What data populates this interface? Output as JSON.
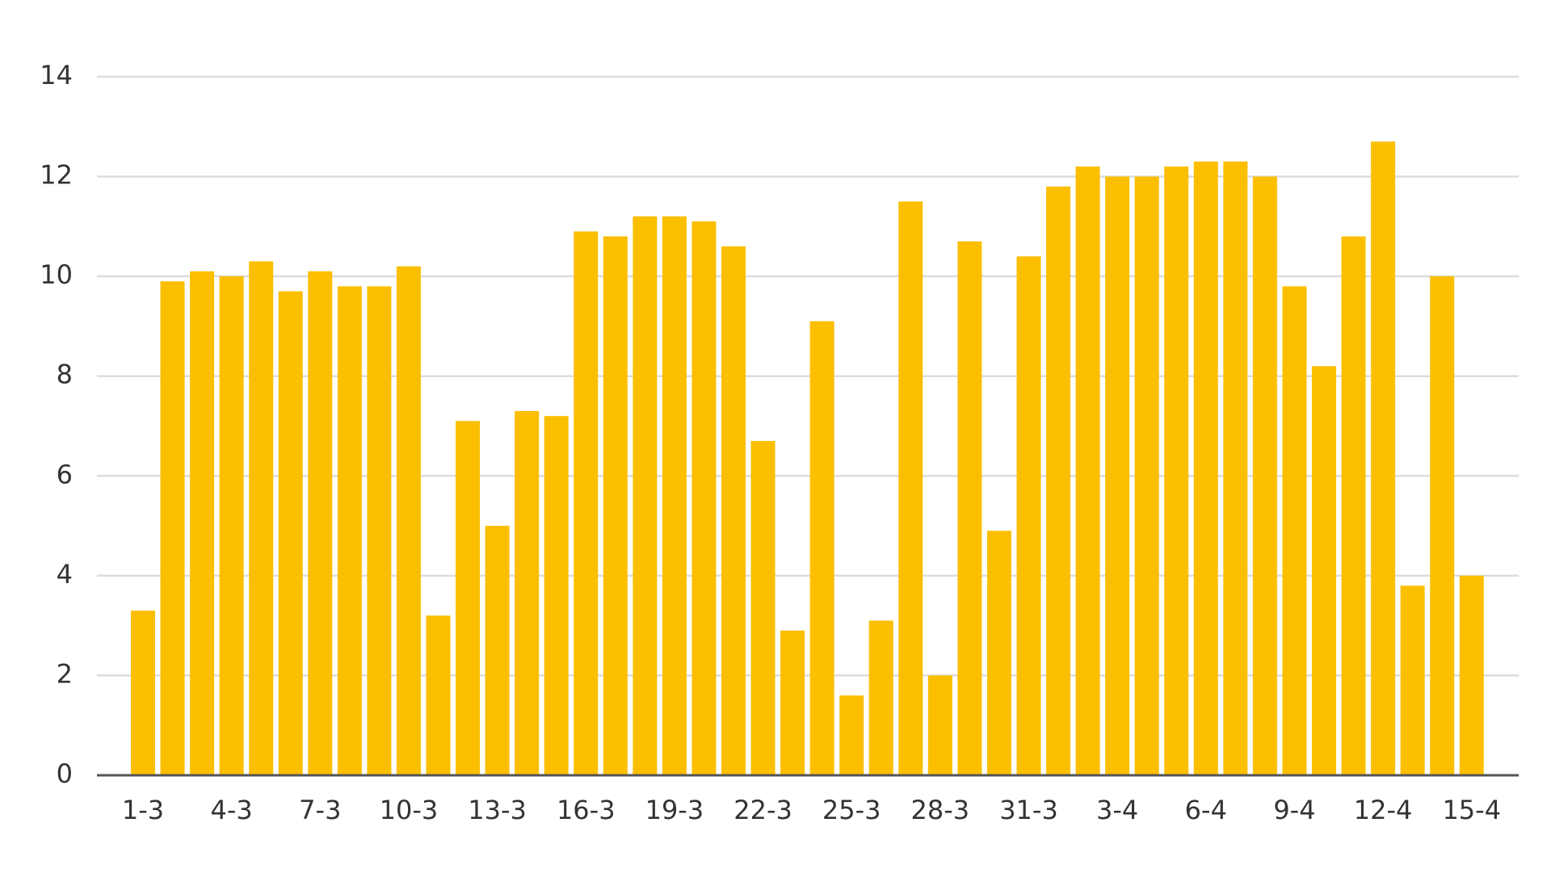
{
  "chart_data": {
    "type": "bar",
    "categories": [
      "1-3",
      null,
      null,
      "4-3",
      null,
      null,
      "7-3",
      null,
      null,
      "10-3",
      null,
      null,
      "13-3",
      null,
      null,
      "16-3",
      null,
      null,
      "19-3",
      null,
      null,
      "22-3",
      null,
      null,
      "25-3",
      null,
      null,
      "28-3",
      null,
      null,
      "31-3",
      null,
      null,
      "3-4",
      null,
      null,
      "6-4",
      null,
      null,
      "9-4",
      null,
      null,
      "12-4",
      null,
      null,
      "15-4"
    ],
    "values": [
      3.3,
      9.9,
      10.1,
      10.0,
      10.3,
      9.7,
      10.1,
      9.8,
      9.8,
      10.2,
      3.2,
      7.1,
      5.0,
      7.3,
      7.2,
      10.9,
      10.8,
      11.2,
      11.2,
      11.1,
      10.6,
      6.7,
      2.9,
      9.1,
      1.6,
      3.1,
      11.5,
      2.0,
      10.7,
      4.9,
      10.4,
      11.8,
      12.2,
      12.0,
      12.0,
      12.2,
      12.3,
      12.3,
      12.0,
      9.8,
      8.2,
      10.8,
      12.7,
      3.8,
      10.0,
      4.0
    ],
    "color": "#fbbf00",
    "ylim": [
      0,
      14
    ],
    "yticks": [
      0,
      2,
      4,
      6,
      8,
      10,
      12,
      14
    ],
    "grid": true
  }
}
